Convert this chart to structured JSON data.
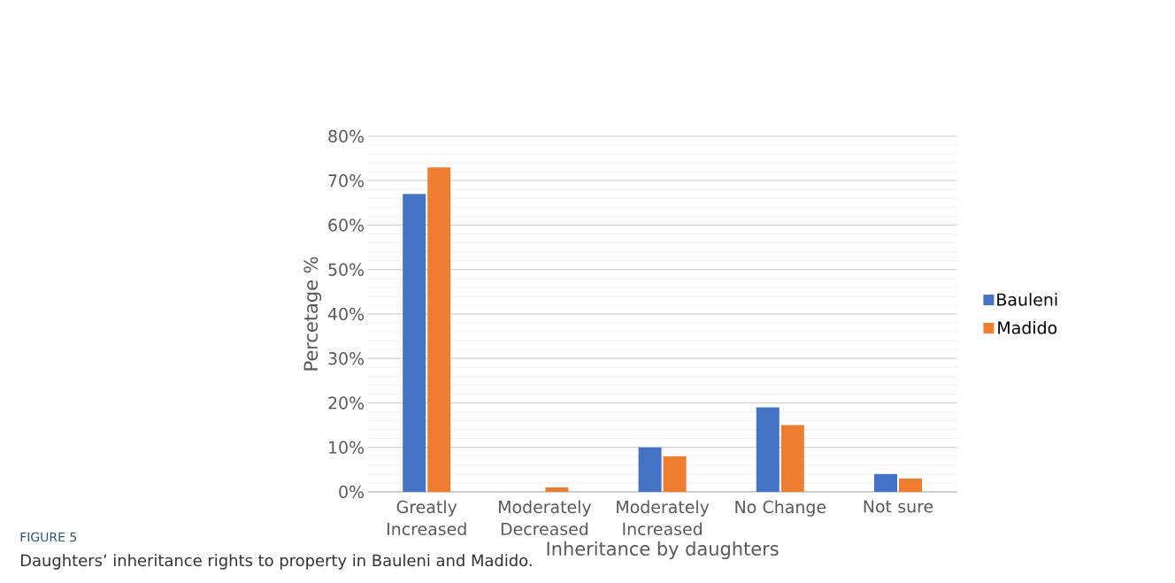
{
  "chart_data": {
    "type": "bar",
    "xlabel": "Inheritance by daughters",
    "ylabel": "Percetage %",
    "categories": [
      "Greatly Increased",
      "Moderately Decreased",
      "Moderately Increased",
      "No Change",
      "Not sure"
    ],
    "series": [
      {
        "name": "Bauleni",
        "color": "#4472c4",
        "values": [
          67,
          0,
          10,
          19,
          4
        ]
      },
      {
        "name": "Madido",
        "color": "#ed7d31",
        "values": [
          73,
          1,
          8,
          15,
          3
        ]
      }
    ],
    "ylim": [
      0,
      80
    ],
    "yticks": [
      {
        "value": 0,
        "label": "0%"
      },
      {
        "value": 10,
        "label": "10%"
      },
      {
        "value": 20,
        "label": "20%"
      },
      {
        "value": 30,
        "label": "30%"
      },
      {
        "value": 40,
        "label": "40%"
      },
      {
        "value": 50,
        "label": "50%"
      },
      {
        "value": 60,
        "label": "60%"
      },
      {
        "value": 70,
        "label": "70%"
      },
      {
        "value": 80,
        "label": "80%"
      }
    ],
    "grid": "y",
    "legend": "right",
    "annotations": [
      "FIGURE 5",
      "Daughters’ inheritance rights to property in Bauleni and Madido."
    ]
  }
}
